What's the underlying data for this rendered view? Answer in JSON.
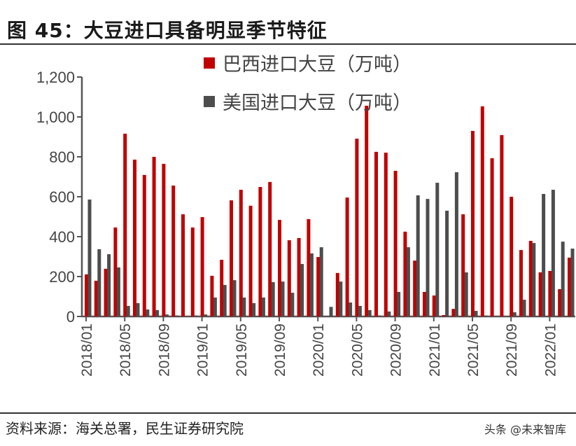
{
  "title": "图 45：大豆进口具备明显季节特征",
  "source": "资料来源：海关总署，民生证券研究院",
  "watermark": "头条 @未来智库",
  "chart_data": {
    "type": "bar",
    "title": "",
    "xlabel": "",
    "ylabel": "",
    "ylim": [
      0,
      1200
    ],
    "yticks": [
      "0",
      "200",
      "400",
      "600",
      "800",
      "1,000",
      "1,200"
    ],
    "legend_position": "top-right",
    "grid": false,
    "categories": [
      "2018/01",
      "2018/02",
      "2018/03",
      "2018/04",
      "2018/05",
      "2018/06",
      "2018/07",
      "2018/08",
      "2018/09",
      "2018/10",
      "2018/11",
      "2018/12",
      "2019/01",
      "2019/02",
      "2019/03",
      "2019/04",
      "2019/05",
      "2019/06",
      "2019/07",
      "2019/08",
      "2019/09",
      "2019/10",
      "2019/11",
      "2019/12",
      "2020/01",
      "2020/02",
      "2020/03",
      "2020/04",
      "2020/05",
      "2020/06",
      "2020/07",
      "2020/08",
      "2020/09",
      "2020/10",
      "2020/11",
      "2020/12",
      "2021/01",
      "2021/02",
      "2021/03",
      "2021/04",
      "2021/05",
      "2021/06",
      "2021/07",
      "2021/08",
      "2021/09",
      "2021/10",
      "2021/11",
      "2021/12",
      "2022/01",
      "2022/02",
      "2022/03"
    ],
    "xtick_labels": [
      "2018/01",
      "2018/05",
      "2018/09",
      "2019/01",
      "2019/05",
      "2019/09",
      "2020/01",
      "2020/05",
      "2020/09",
      "2021/01",
      "2021/05",
      "2021/09",
      "2022/01"
    ],
    "series": [
      {
        "name": "巴西进口大豆（万吨）",
        "color": "#c00000",
        "values": [
          211,
          179,
          239,
          446,
          916,
          786,
          709,
          800,
          765,
          656,
          512,
          446,
          498,
          204,
          284,
          582,
          635,
          555,
          649,
          674,
          484,
          382,
          393,
          488,
          298,
          0,
          218,
          596,
          891,
          1056,
          825,
          821,
          730,
          425,
          280,
          123,
          105,
          7,
          38,
          512,
          930,
          1053,
          793,
          909,
          600,
          333,
          379,
          221,
          228,
          137,
          295
        ]
      },
      {
        "name": "美国进口大豆（万吨）",
        "color": "#4d4d4d",
        "values": [
          586,
          337,
          312,
          246,
          53,
          67,
          35,
          32,
          10,
          5,
          0,
          5,
          10,
          95,
          158,
          182,
          95,
          67,
          95,
          172,
          175,
          119,
          263,
          316,
          347,
          48,
          175,
          70,
          53,
          32,
          5,
          25,
          123,
          347,
          607,
          589,
          670,
          530,
          723,
          221,
          28,
          5,
          3,
          0,
          21,
          84,
          368,
          614,
          635,
          375,
          340
        ]
      }
    ]
  }
}
